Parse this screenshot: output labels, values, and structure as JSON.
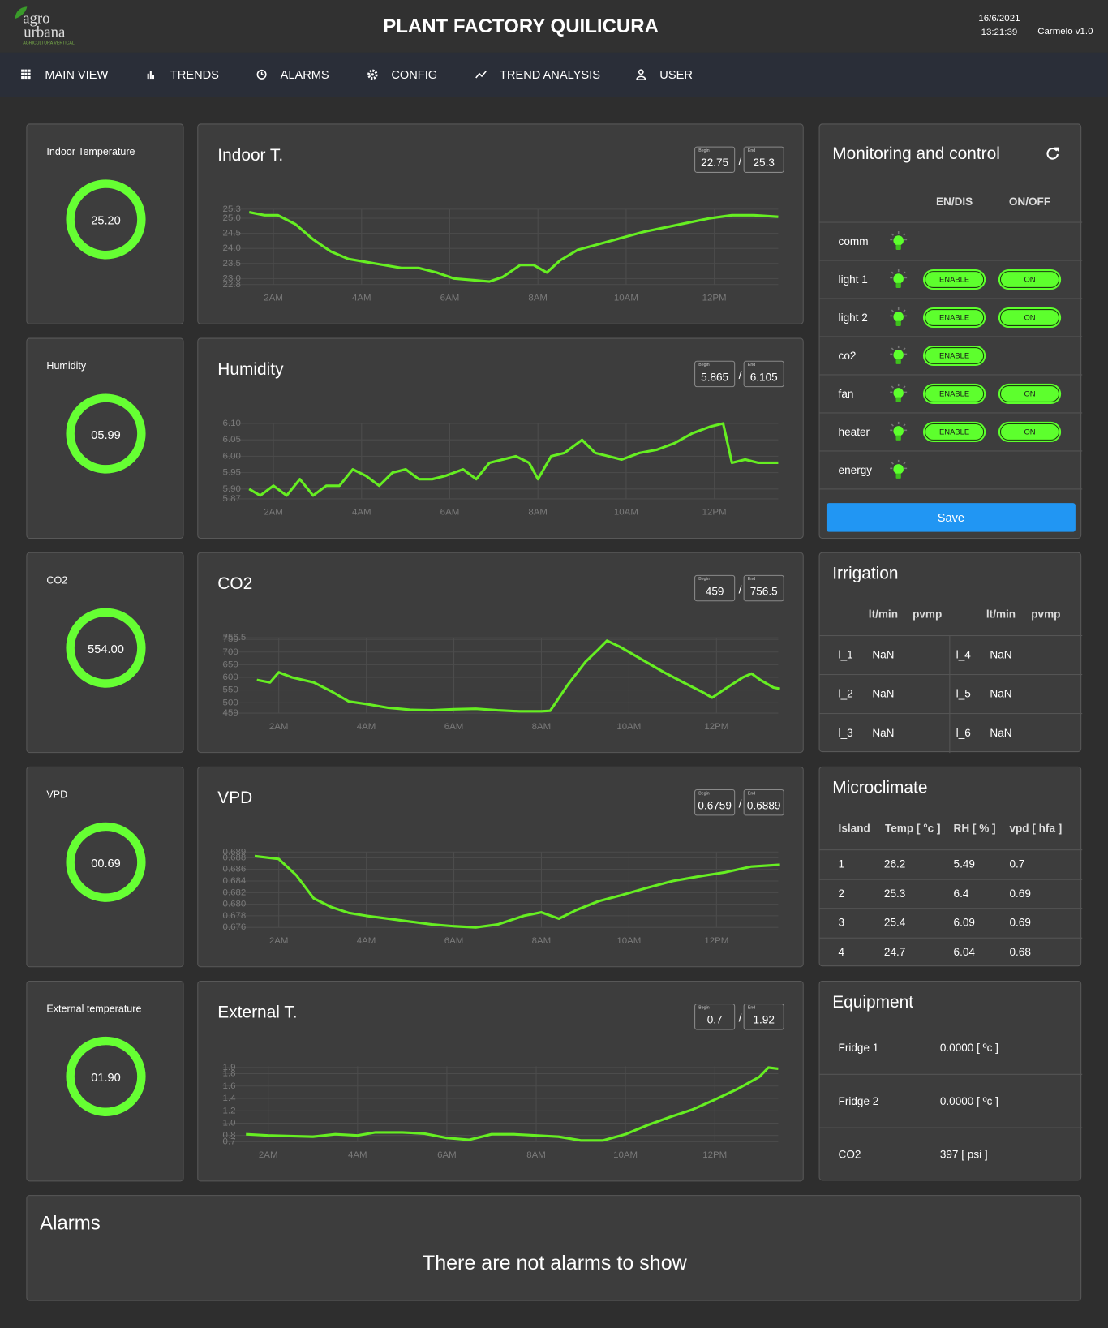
{
  "header": {
    "logo_top": "agro",
    "logo_bottom": "urbana",
    "logo_sub": "AGRICULTURA VERTICAL",
    "title": "PLANT FACTORY QUILICURA",
    "date": "16/6/2021",
    "time": "13:21:39",
    "version": "Carmelo v1.0"
  },
  "nav": [
    "MAIN VIEW",
    "TRENDS",
    "ALARMS",
    "CONFIG",
    "TREND ANALYSIS",
    "USER"
  ],
  "rows": [
    {
      "gauge": {
        "label": "Indoor Temperature",
        "value": "25.20"
      },
      "trend": {
        "title": "Indoor T.",
        "begin_label": "Begin",
        "begin": "22.75",
        "separator": "/",
        "end_label": "End",
        "end": "25.3",
        "chart_data": {
          "type": "line",
          "color": "#66ee22",
          "grid": true,
          "xlim": [
            0.85,
            13.45
          ],
          "ylim": [
            22.8,
            25.3
          ],
          "xticks": [
            {
              "value": 2,
              "label": "2AM"
            },
            {
              "value": 4,
              "label": "4AM"
            },
            {
              "value": 6,
              "label": "6AM"
            },
            {
              "value": 8,
              "label": "8AM"
            },
            {
              "value": 10,
              "label": "10AM"
            },
            {
              "value": 12,
              "label": "12PM"
            }
          ],
          "yticks": [
            22.8,
            {
              "value": 23,
              "label": "23.0"
            },
            23.5,
            {
              "value": 24,
              "label": "24.0"
            },
            24.5,
            {
              "value": 25,
              "label": "25.0"
            },
            25.3
          ],
          "x": [
            1.45,
            1.8,
            2.1,
            2.5,
            2.9,
            3.3,
            3.7,
            4.1,
            4.5,
            4.9,
            5.3,
            5.7,
            6.1,
            6.5,
            6.9,
            7.2,
            7.6,
            7.9,
            8.2,
            8.5,
            8.9,
            9.4,
            9.9,
            10.4,
            10.9,
            11.4,
            11.9,
            12.4,
            12.9,
            13.45
          ],
          "values": [
            25.2,
            25.1,
            25.1,
            24.8,
            24.3,
            23.9,
            23.65,
            23.55,
            23.45,
            23.35,
            23.35,
            23.2,
            23.0,
            22.95,
            22.9,
            23.05,
            23.45,
            23.45,
            23.2,
            23.6,
            23.95,
            24.15,
            24.35,
            24.55,
            24.7,
            24.85,
            25.0,
            25.1,
            25.1,
            25.05
          ]
        }
      }
    },
    {
      "gauge": {
        "label": "Humidity",
        "value": "05.99"
      },
      "trend": {
        "title": "Humidity",
        "begin_label": "Begin",
        "begin": "5.865",
        "separator": "/",
        "end_label": "End",
        "end": "6.105",
        "chart_data": {
          "type": "line",
          "color": "#66ee22",
          "grid": true,
          "xlim": [
            0.85,
            13.45
          ],
          "ylim": [
            5.87,
            6.1
          ],
          "xticks": [
            {
              "value": 2,
              "label": "2AM"
            },
            {
              "value": 4,
              "label": "4AM"
            },
            {
              "value": 6,
              "label": "6AM"
            },
            {
              "value": 8,
              "label": "8AM"
            },
            {
              "value": 10,
              "label": "10AM"
            },
            {
              "value": 12,
              "label": "12PM"
            }
          ],
          "yticks": [
            5.87,
            {
              "value": 5.9,
              "label": "5.90"
            },
            5.95,
            {
              "value": 6,
              "label": "6.00"
            },
            6.05,
            {
              "value": 6.1,
              "label": "6.10"
            }
          ],
          "x": [
            1.45,
            1.7,
            2.0,
            2.3,
            2.6,
            2.9,
            3.2,
            3.5,
            3.8,
            4.1,
            4.4,
            4.7,
            5.0,
            5.3,
            5.6,
            5.9,
            6.3,
            6.6,
            6.9,
            7.2,
            7.5,
            7.8,
            8.0,
            8.3,
            8.6,
            9.0,
            9.3,
            9.6,
            9.9,
            10.3,
            10.7,
            11.1,
            11.5,
            11.9,
            12.2,
            12.4,
            12.7,
            13.0,
            13.45
          ],
          "values": [
            5.9,
            5.88,
            5.91,
            5.88,
            5.93,
            5.88,
            5.91,
            5.91,
            5.96,
            5.94,
            5.91,
            5.95,
            5.96,
            5.93,
            5.93,
            5.94,
            5.96,
            5.93,
            5.98,
            5.99,
            6.0,
            5.98,
            5.93,
            6.0,
            6.01,
            6.05,
            6.01,
            6.0,
            5.99,
            6.01,
            6.02,
            6.04,
            6.07,
            6.09,
            6.1,
            5.98,
            5.99,
            5.98,
            5.98
          ]
        }
      }
    },
    {
      "gauge": {
        "label": "CO2",
        "value": "554.00"
      },
      "trend": {
        "title": "CO2",
        "begin_label": "Begin",
        "begin": "459",
        "separator": "/",
        "end_label": "End",
        "end": "756.5",
        "chart_data": {
          "type": "line",
          "color": "#66ee22",
          "grid": true,
          "xlim": [
            0.72,
            13.41
          ],
          "ylim": [
            459,
            756.5
          ],
          "xticks": [
            {
              "value": 2,
              "label": "2AM"
            },
            {
              "value": 4,
              "label": "4AM"
            },
            {
              "value": 6,
              "label": "6AM"
            },
            {
              "value": 8,
              "label": "8AM"
            },
            {
              "value": 10,
              "label": "10AM"
            },
            {
              "value": 12,
              "label": "12PM"
            }
          ],
          "yticks": [
            459,
            500,
            550,
            600,
            650,
            700,
            750,
            756.5
          ],
          "x": [
            1.5,
            1.8,
            2.0,
            2.3,
            2.8,
            3.2,
            3.6,
            4.0,
            4.5,
            5.0,
            5.5,
            6.0,
            6.5,
            7.0,
            7.5,
            8.0,
            8.2,
            8.6,
            9.0,
            9.3,
            9.5,
            9.8,
            10.3,
            10.8,
            11.3,
            11.7,
            11.9,
            12.2,
            12.6,
            12.8,
            13.0,
            13.3,
            13.45
          ],
          "values": [
            590,
            580,
            620,
            600,
            580,
            545,
            505,
            495,
            480,
            472,
            470,
            474,
            476,
            470,
            466,
            466,
            468,
            570,
            660,
            710,
            745,
            720,
            670,
            620,
            575,
            540,
            520,
            555,
            600,
            615,
            590,
            560,
            555
          ]
        }
      }
    },
    {
      "gauge": {
        "label": "VPD",
        "value": "00.69"
      },
      "trend": {
        "title": "VPD",
        "begin_label": "Begin",
        "begin": "0.6759",
        "separator": "/",
        "end_label": "End",
        "end": "0.6889",
        "chart_data": {
          "type": "line",
          "color": "#66ee22",
          "grid": true,
          "xlim": [
            0.72,
            13.41
          ],
          "ylim": [
            0.676,
            0.689
          ],
          "xticks": [
            {
              "value": 2,
              "label": "2AM"
            },
            {
              "value": 4,
              "label": "4AM"
            },
            {
              "value": 6,
              "label": "6AM"
            },
            {
              "value": 8,
              "label": "8AM"
            },
            {
              "value": 10,
              "label": "10AM"
            },
            {
              "value": 12,
              "label": "12PM"
            }
          ],
          "yticks": [
            0.676,
            0.678,
            {
              "value": 0.68,
              "label": "0.680"
            },
            0.682,
            0.684,
            0.686,
            0.688,
            0.689
          ],
          "x": [
            1.45,
            2.0,
            2.4,
            2.8,
            3.2,
            3.6,
            4.0,
            4.5,
            5.0,
            5.5,
            6.0,
            6.5,
            7.0,
            7.6,
            8.0,
            8.4,
            8.8,
            9.3,
            9.8,
            10.4,
            11.0,
            11.6,
            12.2,
            12.8,
            13.45
          ],
          "values": [
            0.6883,
            0.6878,
            0.685,
            0.681,
            0.6795,
            0.6785,
            0.678,
            0.6775,
            0.677,
            0.6765,
            0.6762,
            0.676,
            0.6765,
            0.678,
            0.6786,
            0.6775,
            0.679,
            0.6805,
            0.6815,
            0.6828,
            0.684,
            0.6848,
            0.6855,
            0.6865,
            0.6868
          ]
        }
      }
    },
    {
      "gauge": {
        "label": "External temperature",
        "value": "01.90"
      },
      "trend": {
        "title": "External T.",
        "begin_label": "Begin",
        "begin": "0.7",
        "separator": "/",
        "end_label": "End",
        "end": "1.92",
        "chart_data": {
          "type": "line",
          "color": "#66ee22",
          "grid": true,
          "xlim": [
            0.98,
            13.42
          ],
          "ylim": [
            0.7,
            1.92
          ],
          "xticks": [
            {
              "value": 2,
              "label": "2AM"
            },
            {
              "value": 4,
              "label": "4AM"
            },
            {
              "value": 6,
              "label": "6AM"
            },
            {
              "value": 8,
              "label": "8AM"
            },
            {
              "value": 10,
              "label": "10AM"
            },
            {
              "value": 12,
              "label": "12PM"
            }
          ],
          "yticks": [
            0.7,
            0.8,
            {
              "value": 1,
              "label": "1.0"
            },
            1.2,
            1.4,
            1.6,
            1.8,
            1.9
          ],
          "x": [
            1.5,
            2.0,
            2.5,
            3.0,
            3.5,
            4.0,
            4.4,
            5.0,
            5.5,
            6.0,
            6.5,
            7.0,
            7.5,
            8.0,
            8.5,
            9.0,
            9.5,
            10.0,
            10.5,
            11.0,
            11.5,
            12.0,
            12.5,
            13.0,
            13.2,
            13.42
          ],
          "values": [
            0.82,
            0.8,
            0.79,
            0.78,
            0.82,
            0.8,
            0.85,
            0.85,
            0.83,
            0.76,
            0.73,
            0.82,
            0.82,
            0.8,
            0.78,
            0.72,
            0.72,
            0.82,
            0.97,
            1.1,
            1.22,
            1.38,
            1.55,
            1.75,
            1.9,
            1.88
          ]
        }
      }
    }
  ],
  "monitoring": {
    "title": "Monitoring and control",
    "headers": [
      "EN/DIS",
      "ON/OFF"
    ],
    "rows": [
      {
        "name": "comm"
      },
      {
        "name": "light 1",
        "enable": "ENABLE",
        "on": "ON"
      },
      {
        "name": "light 2",
        "enable": "ENABLE",
        "on": "ON"
      },
      {
        "name": "co2",
        "enable": "ENABLE"
      },
      {
        "name": "fan",
        "enable": "ENABLE",
        "on": "ON"
      },
      {
        "name": "heater",
        "enable": "ENABLE",
        "on": "ON"
      },
      {
        "name": "energy"
      }
    ],
    "save": "Save"
  },
  "irrigation": {
    "title": "Irrigation",
    "headers": [
      "lt/min",
      "pvmp",
      "lt/min",
      "pvmp"
    ],
    "rows": [
      [
        "l_1",
        "NaN",
        "l_4",
        "NaN"
      ],
      [
        "l_2",
        "NaN",
        "l_5",
        "NaN"
      ],
      [
        "l_3",
        "NaN",
        "l_6",
        "NaN"
      ]
    ]
  },
  "microclimate": {
    "title": "Microclimate",
    "headers": [
      "Island",
      "Temp [ °c ]",
      "RH [ % ]",
      "vpd [ hfa ]"
    ],
    "rows": [
      [
        1,
        26.2,
        5.49,
        0.7
      ],
      [
        2,
        25.3,
        6.4,
        0.69
      ],
      [
        3,
        25.4,
        6.09,
        0.69
      ],
      [
        4,
        24.7,
        6.04,
        0.68
      ]
    ]
  },
  "equipment": {
    "title": "Equipment",
    "rows": [
      [
        "Fridge 1",
        "0.0000 [ ºc ]"
      ],
      [
        "Fridge 2",
        "0.0000 [ ºc ]"
      ],
      [
        "CO2",
        "397 [ psi ]"
      ]
    ]
  },
  "alarms": {
    "title": "Alarms",
    "message": "There are not alarms to show"
  }
}
